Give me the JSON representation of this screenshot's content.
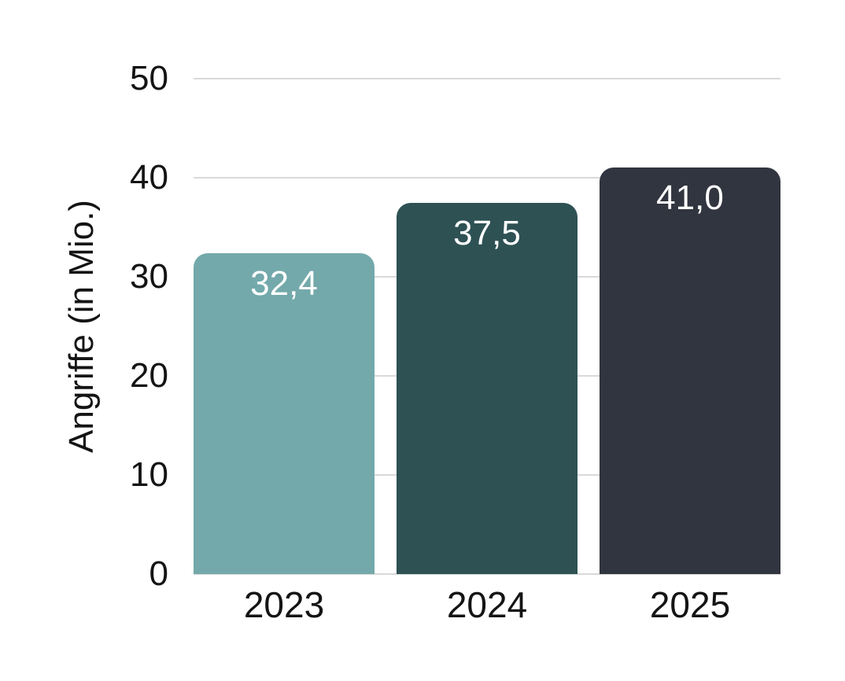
{
  "chart_data": {
    "type": "bar",
    "title": "",
    "categories": [
      "2023",
      "2024",
      "2025"
    ],
    "values": [
      32.4,
      37.5,
      41.0
    ],
    "value_labels": [
      "32,4",
      "37,5",
      "41,0"
    ],
    "xlabel": "",
    "ylabel": "Angriffe (in Mio.)",
    "ylim": [
      0,
      50
    ],
    "yticks": [
      0,
      10,
      20,
      30,
      40,
      50
    ],
    "grid": "horizontal",
    "legend": "none",
    "bar_colors": [
      "#73A9AB",
      "#2E5154",
      "#31353F"
    ],
    "gridline_color": "#D9D9D9",
    "text_color": "#141414",
    "value_label_color": "#FFFFFF",
    "background_color": "#FFFFFF"
  }
}
